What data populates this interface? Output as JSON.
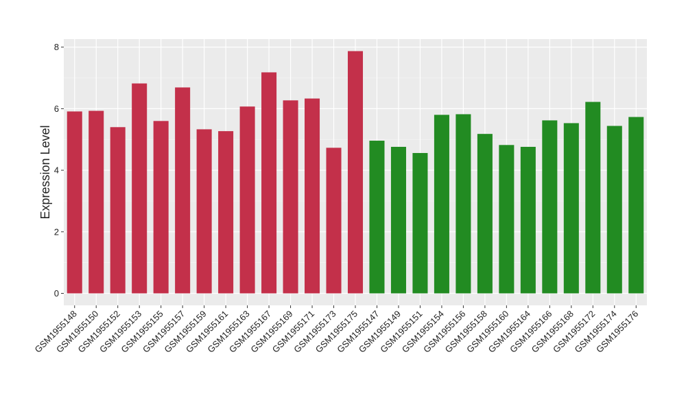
{
  "chart_data": {
    "type": "bar",
    "y_label": "Expression Level",
    "categories": [
      "GSM1955148",
      "GSM1955150",
      "GSM1955152",
      "GSM1955153",
      "GSM1955155",
      "GSM1955157",
      "GSM1955159",
      "GSM1955161",
      "GSM1955163",
      "GSM1955167",
      "GSM1955169",
      "GSM1955171",
      "GSM1955173",
      "GSM1955175",
      "GSM1955147",
      "GSM1955149",
      "GSM1955151",
      "GSM1955154",
      "GSM1955156",
      "GSM1955158",
      "GSM1955160",
      "GSM1955164",
      "GSM1955166",
      "GSM1955168",
      "GSM1955172",
      "GSM1955174",
      "GSM1955176"
    ],
    "values": [
      5.91,
      5.93,
      5.4,
      6.82,
      5.6,
      6.69,
      5.33,
      5.27,
      6.07,
      7.18,
      6.27,
      6.33,
      4.73,
      7.87,
      4.96,
      4.76,
      4.56,
      5.8,
      5.82,
      5.18,
      4.82,
      4.76,
      5.62,
      5.53,
      6.22,
      5.44,
      5.73
    ],
    "colors": [
      "#c3304a",
      "#c3304a",
      "#c3304a",
      "#c3304a",
      "#c3304a",
      "#c3304a",
      "#c3304a",
      "#c3304a",
      "#c3304a",
      "#c3304a",
      "#c3304a",
      "#c3304a",
      "#c3304a",
      "#c3304a",
      "#228b22",
      "#228b22",
      "#228b22",
      "#228b22",
      "#228b22",
      "#228b22",
      "#228b22",
      "#228b22",
      "#228b22",
      "#228b22",
      "#228b22",
      "#228b22",
      "#228b22"
    ],
    "ylim": [
      -0.39,
      8.26
    ],
    "yticks": [
      0,
      2,
      4,
      6,
      8
    ],
    "grid": true
  }
}
